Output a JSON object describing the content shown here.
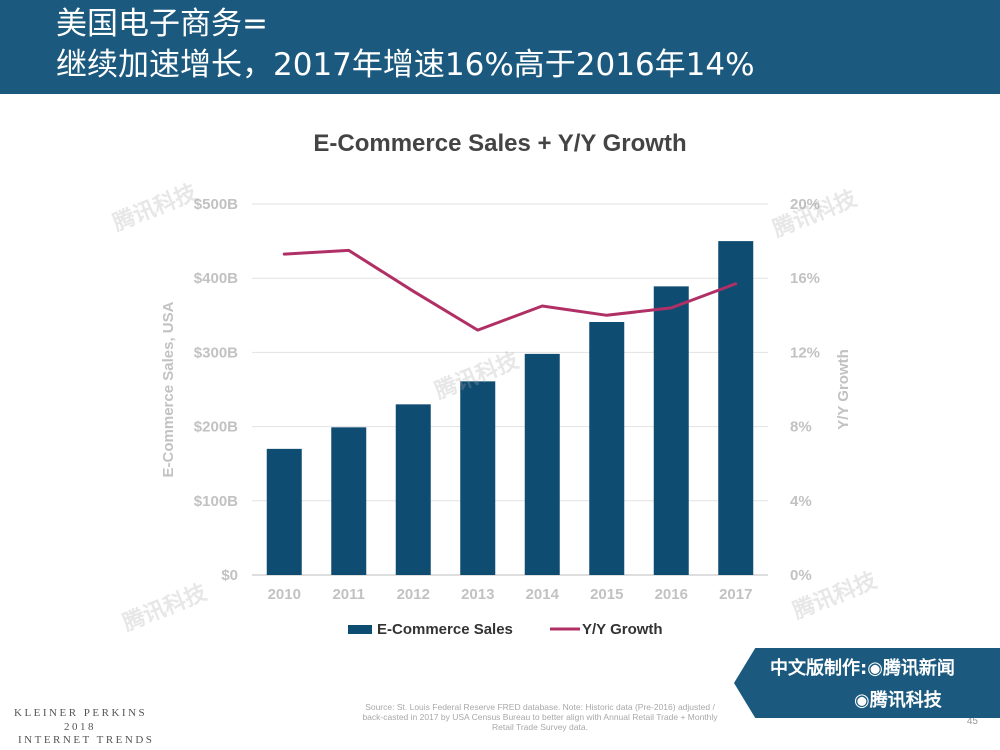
{
  "header": {
    "line1": "美国电子商务=",
    "line2": "继续加速增长，2017年增速16%高于2016年14%"
  },
  "chart_data": {
    "type": "bar",
    "title": "E-Commerce Sales + Y/Y Growth",
    "categories": [
      "2010",
      "2011",
      "2012",
      "2013",
      "2014",
      "2015",
      "2016",
      "2017"
    ],
    "series": [
      {
        "name": "E-Commerce Sales",
        "type": "bar",
        "axis": "left",
        "color": "#0f4c72",
        "values": [
          170,
          199,
          230,
          261,
          298,
          341,
          389,
          450
        ]
      },
      {
        "name": "Y/Y Growth",
        "type": "line",
        "axis": "right",
        "color": "#b03066",
        "values": [
          17.3,
          17.5,
          15.3,
          13.2,
          14.5,
          14.0,
          14.4,
          15.7
        ]
      }
    ],
    "ylabel": "E-Commerce Sales, USA",
    "y2label": "Y/Y Growth",
    "ylim": [
      0,
      500
    ],
    "y2lim": [
      0,
      20
    ],
    "yticks": [
      "$0",
      "$100B",
      "$200B",
      "$300B",
      "$400B",
      "$500B"
    ],
    "y2ticks": [
      "0%",
      "4%",
      "8%",
      "12%",
      "16%",
      "20%"
    ],
    "grid": true,
    "legend": "bottom"
  },
  "footer": {
    "logo_line1": "KLEINER PERKINS",
    "logo_line2": "2018",
    "logo_line3": "INTERNET TRENDS",
    "source": "Source: St. Louis Federal Reserve FRED database. Note: Historic data (Pre-2016) adjusted / back-casted in 2017 by USA Census Bureau to better align with Annual Retail Trade + Monthly Retail Trade Survey data.",
    "page": "45"
  },
  "badge": {
    "line1": "中文版制作:◉腾讯新闻",
    "line2": "◉腾讯科技"
  },
  "watermark": "腾讯科技"
}
